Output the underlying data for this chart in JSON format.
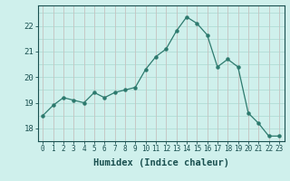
{
  "x": [
    0,
    1,
    2,
    3,
    4,
    5,
    6,
    7,
    8,
    9,
    10,
    11,
    12,
    13,
    14,
    15,
    16,
    17,
    18,
    19,
    20,
    21,
    22,
    23
  ],
  "y": [
    18.5,
    18.9,
    19.2,
    19.1,
    19.0,
    19.4,
    19.2,
    19.4,
    19.5,
    19.6,
    20.3,
    20.8,
    21.1,
    21.8,
    22.35,
    22.1,
    21.65,
    20.4,
    20.7,
    20.4,
    18.6,
    18.2,
    17.7,
    17.7
  ],
  "line_color": "#2d7a6e",
  "marker_color": "#2d7a6e",
  "bg_color": "#cff0ec",
  "grid_major_color": "#aad8d2",
  "grid_minor_color": "#c0e8e2",
  "xlabel": "Humidex (Indice chaleur)",
  "ylim": [
    17.5,
    22.8
  ],
  "xlim": [
    -0.5,
    23.5
  ],
  "yticks": [
    18,
    19,
    20,
    21,
    22
  ],
  "xticks": [
    0,
    1,
    2,
    3,
    4,
    5,
    6,
    7,
    8,
    9,
    10,
    11,
    12,
    13,
    14,
    15,
    16,
    17,
    18,
    19,
    20,
    21,
    22,
    23
  ],
  "tick_color": "#1a5050",
  "xlabel_fontsize": 7.5,
  "ytick_fontsize": 6.5,
  "xtick_fontsize": 5.5
}
